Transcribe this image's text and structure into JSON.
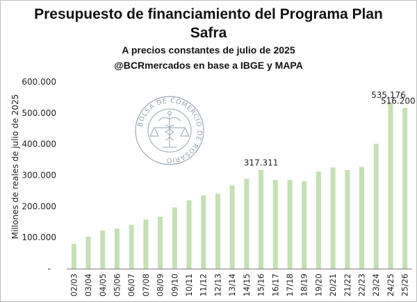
{
  "chart_data": {
    "type": "bar",
    "title": "Presupuesto de financiamiento del Programa Plan Safra",
    "subtitle": [
      "A precios constantes de julio de 2025",
      "@BCRmercados en base a IBGE y MAPA"
    ],
    "xlabel": "",
    "ylabel": "Millones de reales de julio de 2025",
    "ylim": [
      0,
      600000
    ],
    "yticks": [
      0,
      100000,
      200000,
      300000,
      400000,
      500000,
      600000
    ],
    "ytick_labels": [
      "-",
      "100.000",
      "200.000",
      "300.000",
      "400.000",
      "500.000",
      "600.000"
    ],
    "grid": false,
    "categories": [
      "02/03",
      "03/04",
      "04/05",
      "05/06",
      "06/07",
      "07/08",
      "08/09",
      "09/10",
      "10/11",
      "11/12",
      "12/13",
      "13/14",
      "14/15",
      "15/16",
      "16/17",
      "17/18",
      "18/19",
      "19/20",
      "20/21",
      "21/22",
      "22/23",
      "23/24",
      "24/25",
      "25/26"
    ],
    "values": [
      80000,
      103000,
      123000,
      129000,
      141000,
      158000,
      167000,
      197000,
      220000,
      236000,
      241000,
      268000,
      289000,
      317311,
      285000,
      285000,
      281000,
      312000,
      325000,
      317000,
      327000,
      401000,
      535176,
      516200
    ],
    "data_labels": [
      {
        "index": 13,
        "text": "317.311"
      },
      {
        "index": 22,
        "text": "535.176"
      },
      {
        "index": 23,
        "text": "516.200"
      }
    ],
    "colors": {
      "bar": "#c5e0b4",
      "axis": "#808080",
      "text": "#222222"
    }
  },
  "watermark": {
    "outer_text": "BOLSA DE COMERCIO DE ROSARIO",
    "icon": "caduceus-scales-seal"
  }
}
